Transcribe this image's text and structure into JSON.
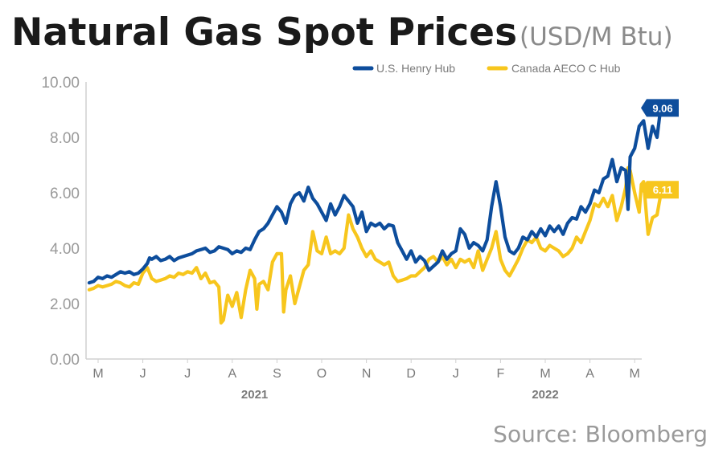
{
  "chart_data": {
    "type": "line",
    "title": "Natural Gas Spot Prices",
    "subtitle": "(USD/M Btu)",
    "source": "Source: Bloomberg",
    "ylim": [
      0,
      10
    ],
    "yticks": [
      "0.00",
      "2.00",
      "4.00",
      "6.00",
      "8.00",
      "10.00"
    ],
    "ytick_values": [
      0,
      2,
      4,
      6,
      8,
      10
    ],
    "grid": false,
    "legend_position": "top-right",
    "months": [
      "M",
      "J",
      "J",
      "A",
      "S",
      "O",
      "N",
      "D",
      "J",
      "F",
      "M",
      "A",
      "M"
    ],
    "years": [
      {
        "label": "2021",
        "month_index": 3.5
      },
      {
        "label": "2022",
        "month_index": 10.0
      }
    ],
    "x_unit": "month index (0 = May 2021)",
    "xlim": [
      -0.25,
      12.15
    ],
    "series": [
      {
        "name": "U.S. Henry Hub",
        "color": "#0d4d9c",
        "end_label": "9.06",
        "points": [
          [
            -0.2,
            2.75
          ],
          [
            -0.1,
            2.8
          ],
          [
            0.0,
            2.95
          ],
          [
            0.1,
            2.9
          ],
          [
            0.2,
            3.0
          ],
          [
            0.3,
            2.95
          ],
          [
            0.4,
            3.05
          ],
          [
            0.5,
            3.15
          ],
          [
            0.6,
            3.1
          ],
          [
            0.7,
            3.15
          ],
          [
            0.8,
            3.05
          ],
          [
            0.9,
            3.1
          ],
          [
            1.0,
            3.25
          ],
          [
            1.1,
            3.45
          ],
          [
            1.15,
            3.65
          ],
          [
            1.2,
            3.6
          ],
          [
            1.3,
            3.7
          ],
          [
            1.4,
            3.55
          ],
          [
            1.5,
            3.6
          ],
          [
            1.6,
            3.7
          ],
          [
            1.7,
            3.55
          ],
          [
            1.8,
            3.65
          ],
          [
            1.9,
            3.7
          ],
          [
            2.0,
            3.75
          ],
          [
            2.1,
            3.8
          ],
          [
            2.2,
            3.9
          ],
          [
            2.3,
            3.95
          ],
          [
            2.4,
            4.0
          ],
          [
            2.5,
            3.85
          ],
          [
            2.6,
            3.9
          ],
          [
            2.7,
            4.05
          ],
          [
            2.8,
            4.0
          ],
          [
            2.9,
            3.95
          ],
          [
            3.0,
            3.8
          ],
          [
            3.1,
            3.9
          ],
          [
            3.2,
            3.85
          ],
          [
            3.3,
            4.0
          ],
          [
            3.4,
            3.95
          ],
          [
            3.5,
            4.3
          ],
          [
            3.6,
            4.6
          ],
          [
            3.7,
            4.7
          ],
          [
            3.8,
            4.9
          ],
          [
            3.9,
            5.2
          ],
          [
            4.0,
            5.5
          ],
          [
            4.1,
            5.3
          ],
          [
            4.2,
            4.9
          ],
          [
            4.3,
            5.6
          ],
          [
            4.4,
            5.9
          ],
          [
            4.5,
            6.0
          ],
          [
            4.6,
            5.7
          ],
          [
            4.7,
            6.2
          ],
          [
            4.8,
            5.8
          ],
          [
            4.9,
            5.6
          ],
          [
            5.0,
            5.3
          ],
          [
            5.1,
            5.0
          ],
          [
            5.2,
            5.6
          ],
          [
            5.3,
            5.2
          ],
          [
            5.4,
            5.5
          ],
          [
            5.5,
            5.9
          ],
          [
            5.6,
            5.7
          ],
          [
            5.7,
            5.5
          ],
          [
            5.8,
            4.9
          ],
          [
            5.9,
            5.3
          ],
          [
            6.0,
            4.6
          ],
          [
            6.1,
            4.9
          ],
          [
            6.2,
            4.8
          ],
          [
            6.3,
            4.9
          ],
          [
            6.4,
            4.7
          ],
          [
            6.5,
            4.85
          ],
          [
            6.6,
            4.8
          ],
          [
            6.7,
            4.2
          ],
          [
            6.8,
            3.9
          ],
          [
            6.9,
            3.6
          ],
          [
            7.0,
            3.9
          ],
          [
            7.1,
            3.5
          ],
          [
            7.2,
            3.7
          ],
          [
            7.3,
            3.55
          ],
          [
            7.4,
            3.2
          ],
          [
            7.5,
            3.35
          ],
          [
            7.6,
            3.5
          ],
          [
            7.7,
            3.9
          ],
          [
            7.8,
            3.6
          ],
          [
            7.9,
            3.8
          ],
          [
            8.0,
            3.9
          ],
          [
            8.1,
            4.7
          ],
          [
            8.2,
            4.5
          ],
          [
            8.3,
            4.0
          ],
          [
            8.4,
            4.2
          ],
          [
            8.5,
            4.1
          ],
          [
            8.6,
            3.9
          ],
          [
            8.7,
            4.3
          ],
          [
            8.8,
            5.5
          ],
          [
            8.9,
            6.4
          ],
          [
            9.0,
            5.5
          ],
          [
            9.1,
            4.4
          ],
          [
            9.2,
            3.9
          ],
          [
            9.3,
            3.8
          ],
          [
            9.4,
            4.0
          ],
          [
            9.5,
            4.4
          ],
          [
            9.6,
            4.3
          ],
          [
            9.7,
            4.6
          ],
          [
            9.8,
            4.4
          ],
          [
            9.9,
            4.7
          ],
          [
            10.0,
            4.45
          ],
          [
            10.1,
            4.8
          ],
          [
            10.2,
            4.6
          ],
          [
            10.3,
            4.8
          ],
          [
            10.4,
            4.5
          ],
          [
            10.5,
            4.9
          ],
          [
            10.6,
            5.1
          ],
          [
            10.7,
            5.05
          ],
          [
            10.8,
            5.5
          ],
          [
            10.9,
            5.3
          ],
          [
            11.0,
            5.6
          ],
          [
            11.1,
            6.1
          ],
          [
            11.2,
            6.0
          ],
          [
            11.3,
            6.5
          ],
          [
            11.4,
            6.6
          ],
          [
            11.5,
            7.2
          ],
          [
            11.6,
            6.4
          ],
          [
            11.7,
            6.9
          ],
          [
            11.8,
            6.8
          ],
          [
            11.85,
            5.4
          ],
          [
            11.9,
            7.3
          ],
          [
            12.0,
            7.6
          ],
          [
            12.1,
            8.4
          ],
          [
            12.2,
            8.6
          ],
          [
            12.3,
            7.6
          ],
          [
            12.4,
            8.4
          ],
          [
            12.5,
            8.0
          ],
          [
            12.6,
            9.3
          ],
          [
            12.7,
            9.06
          ]
        ]
      },
      {
        "name": "Canada AECO C Hub",
        "color": "#f7c61d",
        "end_label": "6.11",
        "points": [
          [
            -0.2,
            2.5
          ],
          [
            -0.1,
            2.55
          ],
          [
            0.0,
            2.65
          ],
          [
            0.1,
            2.6
          ],
          [
            0.2,
            2.65
          ],
          [
            0.3,
            2.7
          ],
          [
            0.4,
            2.8
          ],
          [
            0.5,
            2.75
          ],
          [
            0.6,
            2.65
          ],
          [
            0.7,
            2.6
          ],
          [
            0.8,
            2.75
          ],
          [
            0.9,
            2.7
          ],
          [
            1.0,
            3.1
          ],
          [
            1.1,
            3.3
          ],
          [
            1.2,
            2.9
          ],
          [
            1.3,
            2.8
          ],
          [
            1.4,
            2.85
          ],
          [
            1.5,
            2.9
          ],
          [
            1.6,
            3.0
          ],
          [
            1.7,
            2.95
          ],
          [
            1.8,
            3.1
          ],
          [
            1.9,
            3.05
          ],
          [
            2.0,
            3.15
          ],
          [
            2.1,
            3.1
          ],
          [
            2.2,
            3.3
          ],
          [
            2.3,
            2.9
          ],
          [
            2.4,
            3.1
          ],
          [
            2.5,
            2.75
          ],
          [
            2.6,
            2.8
          ],
          [
            2.7,
            2.6
          ],
          [
            2.75,
            1.3
          ],
          [
            2.8,
            1.4
          ],
          [
            2.9,
            2.3
          ],
          [
            3.0,
            1.9
          ],
          [
            3.1,
            2.4
          ],
          [
            3.2,
            1.5
          ],
          [
            3.3,
            2.5
          ],
          [
            3.4,
            3.2
          ],
          [
            3.5,
            2.9
          ],
          [
            3.55,
            1.8
          ],
          [
            3.6,
            2.7
          ],
          [
            3.7,
            2.8
          ],
          [
            3.8,
            2.5
          ],
          [
            3.9,
            3.5
          ],
          [
            4.0,
            3.8
          ],
          [
            4.1,
            3.8
          ],
          [
            4.15,
            1.7
          ],
          [
            4.2,
            2.5
          ],
          [
            4.3,
            3.0
          ],
          [
            4.4,
            2.0
          ],
          [
            4.5,
            2.6
          ],
          [
            4.6,
            3.2
          ],
          [
            4.7,
            3.4
          ],
          [
            4.8,
            4.6
          ],
          [
            4.9,
            3.9
          ],
          [
            5.0,
            3.8
          ],
          [
            5.1,
            4.4
          ],
          [
            5.2,
            3.8
          ],
          [
            5.3,
            3.9
          ],
          [
            5.4,
            3.8
          ],
          [
            5.5,
            4.0
          ],
          [
            5.6,
            5.2
          ],
          [
            5.7,
            4.7
          ],
          [
            5.8,
            4.4
          ],
          [
            5.9,
            4.0
          ],
          [
            6.0,
            3.7
          ],
          [
            6.1,
            3.9
          ],
          [
            6.2,
            3.6
          ],
          [
            6.3,
            3.5
          ],
          [
            6.4,
            3.4
          ],
          [
            6.5,
            3.5
          ],
          [
            6.6,
            3.0
          ],
          [
            6.7,
            2.8
          ],
          [
            6.8,
            2.85
          ],
          [
            6.9,
            2.9
          ],
          [
            7.0,
            3.0
          ],
          [
            7.1,
            3.0
          ],
          [
            7.2,
            3.15
          ],
          [
            7.3,
            3.3
          ],
          [
            7.4,
            3.6
          ],
          [
            7.5,
            3.7
          ],
          [
            7.6,
            3.5
          ],
          [
            7.7,
            3.7
          ],
          [
            7.8,
            3.4
          ],
          [
            7.9,
            3.6
          ],
          [
            8.0,
            3.3
          ],
          [
            8.1,
            3.6
          ],
          [
            8.2,
            3.5
          ],
          [
            8.3,
            3.6
          ],
          [
            8.4,
            3.3
          ],
          [
            8.5,
            3.9
          ],
          [
            8.6,
            3.2
          ],
          [
            8.7,
            3.6
          ],
          [
            8.8,
            4.0
          ],
          [
            8.9,
            4.6
          ],
          [
            9.0,
            3.6
          ],
          [
            9.1,
            3.2
          ],
          [
            9.2,
            3.0
          ],
          [
            9.3,
            3.3
          ],
          [
            9.4,
            3.6
          ],
          [
            9.5,
            4.0
          ],
          [
            9.6,
            4.3
          ],
          [
            9.7,
            4.2
          ],
          [
            9.8,
            4.4
          ],
          [
            9.9,
            4.0
          ],
          [
            10.0,
            3.9
          ],
          [
            10.1,
            4.1
          ],
          [
            10.2,
            4.0
          ],
          [
            10.3,
            3.9
          ],
          [
            10.4,
            3.7
          ],
          [
            10.5,
            3.8
          ],
          [
            10.6,
            4.0
          ],
          [
            10.7,
            4.4
          ],
          [
            10.8,
            4.2
          ],
          [
            10.9,
            4.6
          ],
          [
            11.0,
            5.0
          ],
          [
            11.1,
            5.6
          ],
          [
            11.2,
            5.5
          ],
          [
            11.3,
            5.8
          ],
          [
            11.4,
            5.5
          ],
          [
            11.5,
            5.9
          ],
          [
            11.6,
            5.0
          ],
          [
            11.7,
            5.5
          ],
          [
            11.8,
            6.2
          ],
          [
            11.85,
            6.9
          ],
          [
            11.9,
            6.8
          ],
          [
            12.0,
            6.0
          ],
          [
            12.1,
            5.3
          ],
          [
            12.15,
            6.3
          ],
          [
            12.2,
            6.4
          ],
          [
            12.3,
            4.5
          ],
          [
            12.4,
            5.1
          ],
          [
            12.5,
            5.2
          ],
          [
            12.6,
            6.1
          ],
          [
            12.7,
            6.11
          ]
        ]
      }
    ]
  }
}
